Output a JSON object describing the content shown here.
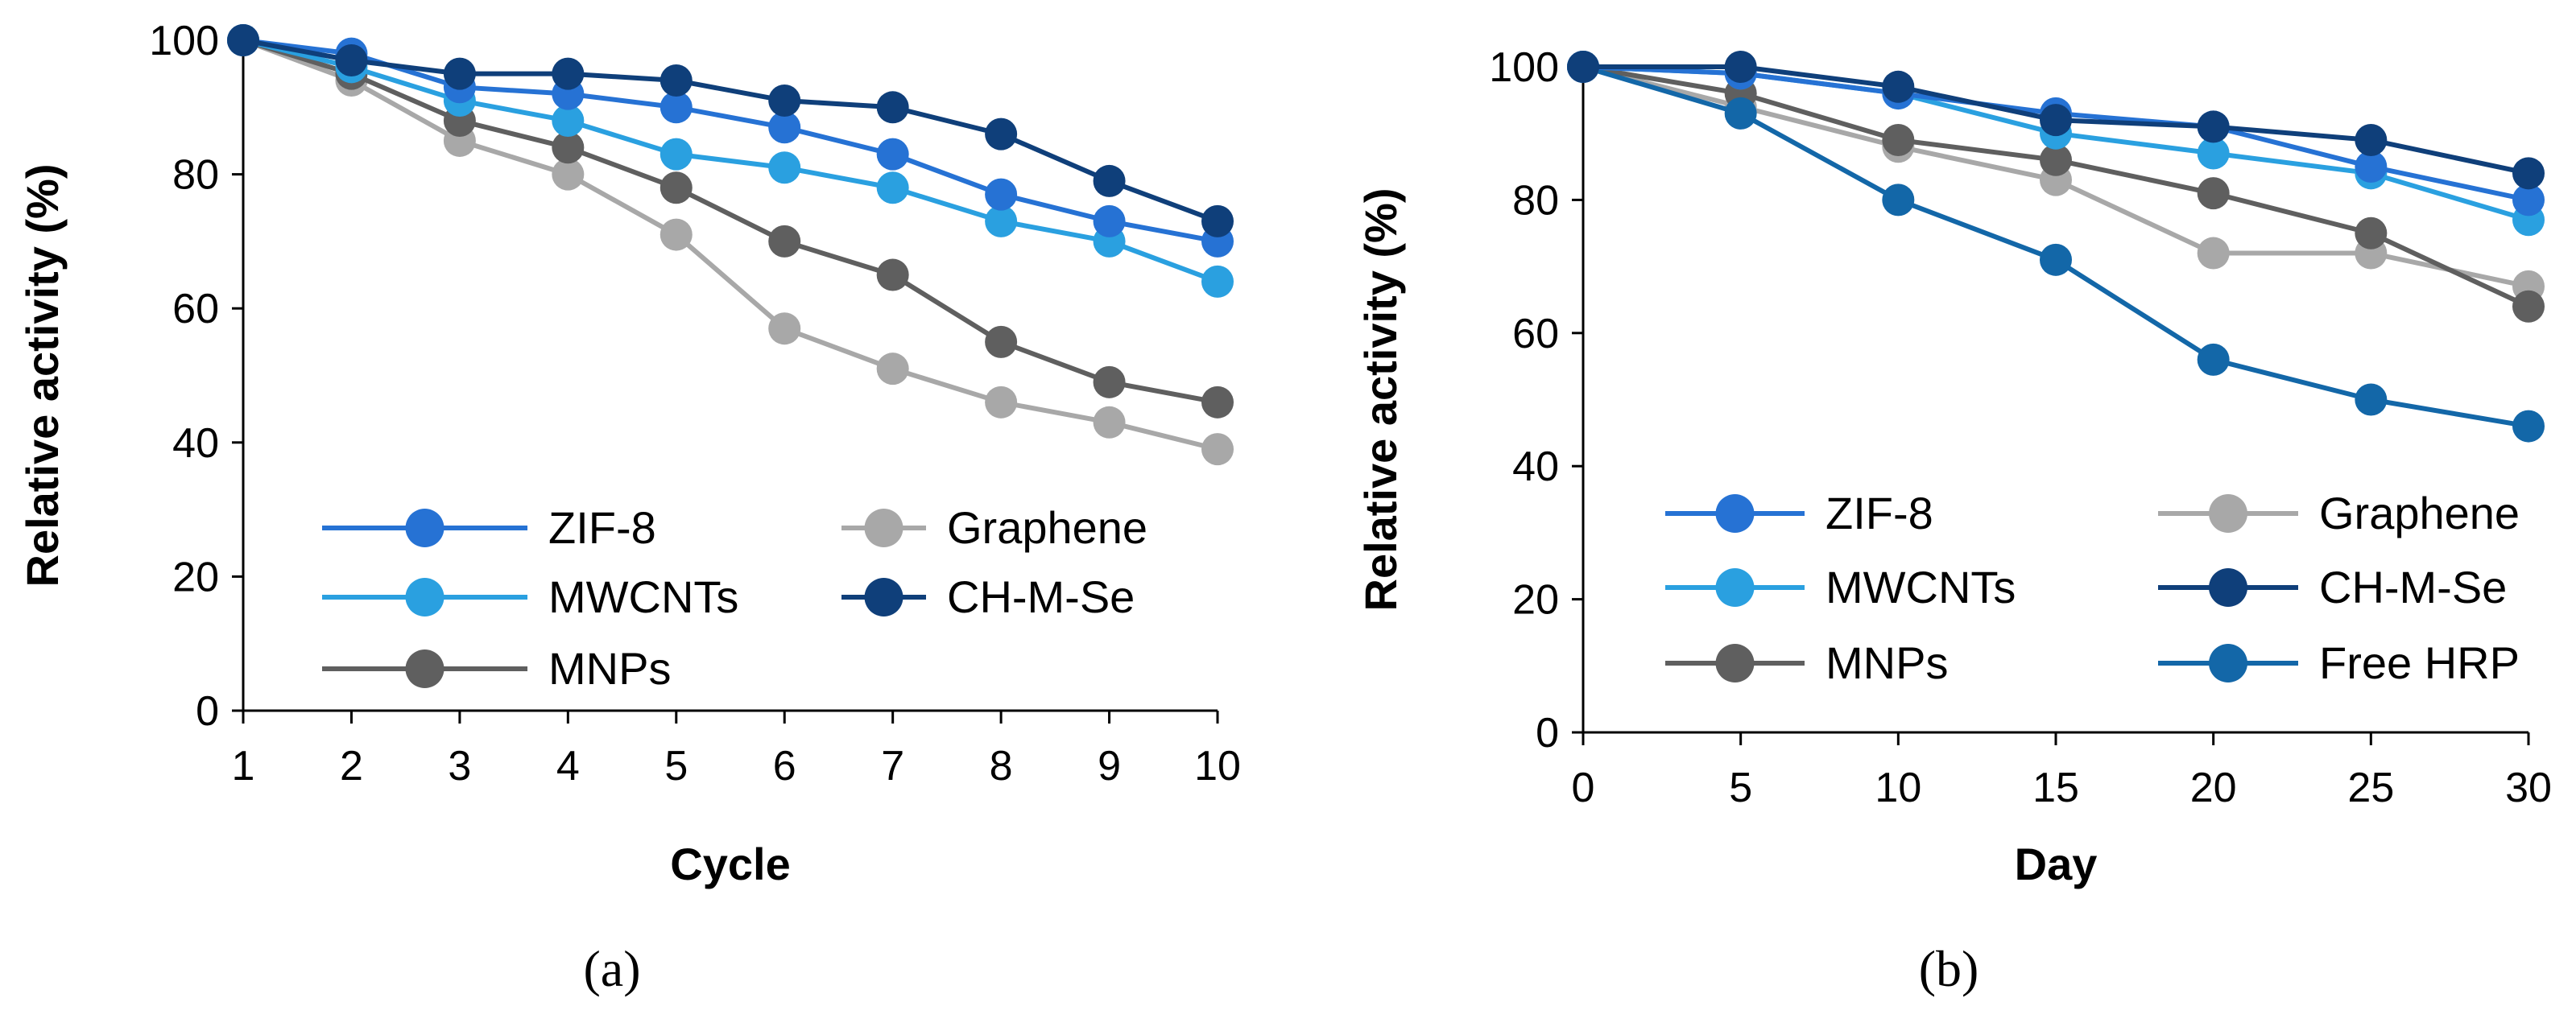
{
  "series_styles": {
    "ZIF-8": {
      "color": "#2672D4"
    },
    "Graphene": {
      "color": "#A8A8A8"
    },
    "MWCNTs": {
      "color": "#2AA0E0"
    },
    "CH-M-Se": {
      "color": "#0F3F7A"
    },
    "MNPs": {
      "color": "#5F5F5F"
    },
    "Free HRP": {
      "color": "#1367A8"
    }
  },
  "chart_data": [
    {
      "id": "a",
      "type": "line",
      "caption": "(a)",
      "xlabel": "Cycle",
      "ylabel": "Relative activity (%)",
      "xlim": [
        1,
        10
      ],
      "ylim": [
        0,
        100
      ],
      "xticks": [
        1,
        2,
        3,
        4,
        5,
        6,
        7,
        8,
        9,
        10
      ],
      "yticks": [
        0,
        20,
        40,
        60,
        80,
        100
      ],
      "x": [
        1,
        2,
        3,
        4,
        5,
        6,
        7,
        8,
        9,
        10
      ],
      "legend": [
        "ZIF-8",
        "Graphene",
        "MWCNTs",
        "CH-M-Se",
        "MNPs"
      ],
      "series": [
        {
          "name": "Graphene",
          "values": [
            100,
            94,
            85,
            80,
            71,
            57,
            51,
            46,
            43,
            39
          ]
        },
        {
          "name": "MNPs",
          "values": [
            100,
            95,
            88,
            84,
            78,
            70,
            65,
            55,
            49,
            46
          ]
        },
        {
          "name": "MWCNTs",
          "values": [
            100,
            96,
            91,
            88,
            83,
            81,
            78,
            73,
            70,
            64
          ]
        },
        {
          "name": "ZIF-8",
          "values": [
            100,
            98,
            93,
            92,
            90,
            87,
            83,
            77,
            73,
            70
          ]
        },
        {
          "name": "CH-M-Se",
          "values": [
            100,
            97,
            95,
            95,
            94,
            91,
            90,
            86,
            79,
            73
          ]
        }
      ]
    },
    {
      "id": "b",
      "type": "line",
      "caption": "(b)",
      "xlabel": "Day",
      "ylabel": "Relative activity (%)",
      "xlim": [
        0,
        30
      ],
      "ylim": [
        0,
        100
      ],
      "xticks": [
        0,
        5,
        10,
        15,
        20,
        25,
        30
      ],
      "yticks": [
        0,
        20,
        40,
        60,
        80,
        100
      ],
      "x": [
        0,
        5,
        10,
        15,
        20,
        25,
        30
      ],
      "legend": [
        "ZIF-8",
        "Graphene",
        "MWCNTs",
        "CH-M-Se",
        "MNPs",
        "Free HRP"
      ],
      "series": [
        {
          "name": "Graphene",
          "values": [
            100,
            94,
            88,
            83,
            72,
            72,
            67
          ]
        },
        {
          "name": "MNPs",
          "values": [
            100,
            96,
            89,
            86,
            81,
            75,
            64
          ]
        },
        {
          "name": "Free HRP",
          "values": [
            100,
            93,
            80,
            71,
            56,
            50,
            46
          ]
        },
        {
          "name": "MWCNTs",
          "values": [
            100,
            99,
            96,
            90,
            87,
            84,
            77
          ]
        },
        {
          "name": "ZIF-8",
          "values": [
            100,
            99,
            96,
            93,
            91,
            85,
            80
          ]
        },
        {
          "name": "CH-M-Se",
          "values": [
            100,
            100,
            97,
            92,
            91,
            89,
            84
          ]
        }
      ]
    }
  ]
}
